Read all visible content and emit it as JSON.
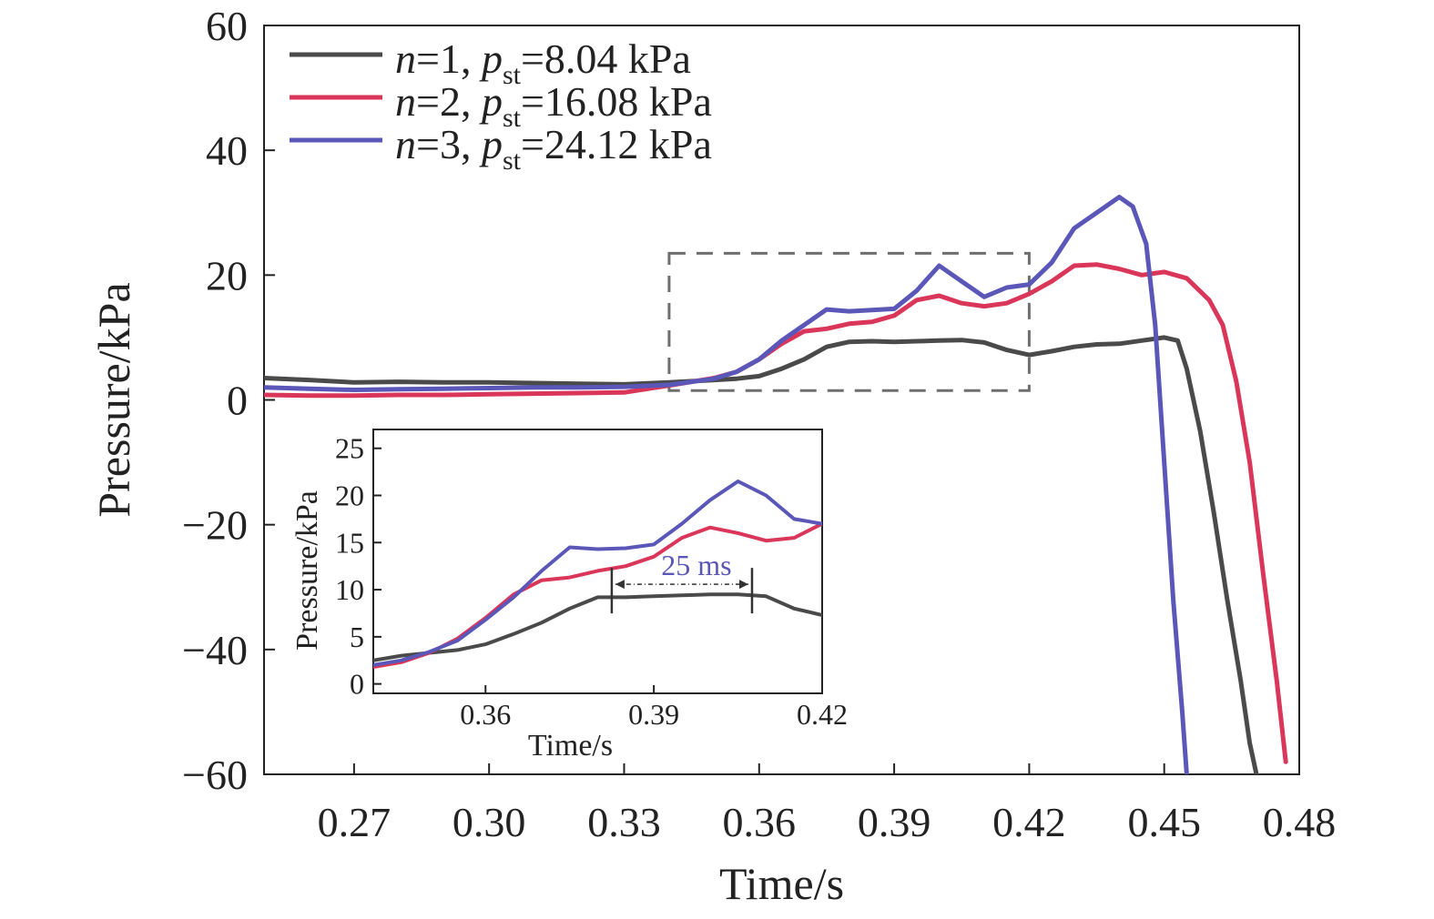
{
  "chart_data": [
    {
      "type": "line",
      "role": "main",
      "xlabel": "Time/s",
      "ylabel": "Pressure/kPa",
      "xlim": [
        0.25,
        0.48
      ],
      "ylim": [
        -60,
        60
      ],
      "xticks": [
        0.27,
        0.3,
        0.33,
        0.36,
        0.39,
        0.42,
        0.45,
        0.48
      ],
      "xtick_labels": [
        "0.27",
        "0.30",
        "0.33",
        "0.36",
        "0.39",
        "0.42",
        "0.45",
        "0.48"
      ],
      "yticks": [
        -60,
        -40,
        -20,
        0,
        20,
        40,
        60
      ],
      "ytick_labels": [
        "−60",
        "−40",
        "−20",
        "0",
        "20",
        "40",
        "60"
      ],
      "legend_position": "top-left",
      "grid": false,
      "series": [
        {
          "label": {
            "n": "n",
            "n_val": "=1, ",
            "p": "p",
            "sub": "st",
            "rest": "=8.04 kPa"
          },
          "color": "#4a4a4a",
          "x": [
            0.25,
            0.26,
            0.27,
            0.28,
            0.29,
            0.3,
            0.31,
            0.32,
            0.33,
            0.34,
            0.35,
            0.355,
            0.36,
            0.365,
            0.37,
            0.375,
            0.38,
            0.385,
            0.39,
            0.395,
            0.4,
            0.405,
            0.41,
            0.415,
            0.42,
            0.425,
            0.43,
            0.435,
            0.44,
            0.445,
            0.45,
            0.453,
            0.455,
            0.458,
            0.461,
            0.464,
            0.467,
            0.469,
            0.4705
          ],
          "y": [
            3.5,
            3.2,
            2.8,
            2.9,
            2.8,
            2.8,
            2.7,
            2.6,
            2.5,
            2.8,
            3.2,
            3.4,
            3.8,
            5.0,
            6.5,
            8.5,
            9.3,
            9.4,
            9.3,
            9.4,
            9.5,
            9.6,
            9.2,
            8.0,
            7.2,
            7.8,
            8.5,
            8.9,
            9.0,
            9.5,
            10.0,
            9.5,
            5.0,
            -5.0,
            -18.0,
            -32.0,
            -45.0,
            -55.0,
            -60.0
          ]
        },
        {
          "label": {
            "n": "n",
            "n_val": "=2, ",
            "p": "p",
            "sub": "st",
            "rest": "=16.08 kPa"
          },
          "color": "#d9365a",
          "x": [
            0.25,
            0.26,
            0.27,
            0.28,
            0.29,
            0.3,
            0.31,
            0.32,
            0.33,
            0.34,
            0.35,
            0.355,
            0.36,
            0.365,
            0.37,
            0.375,
            0.38,
            0.385,
            0.39,
            0.395,
            0.4,
            0.405,
            0.41,
            0.415,
            0.42,
            0.425,
            0.43,
            0.435,
            0.44,
            0.445,
            0.45,
            0.455,
            0.46,
            0.463,
            0.466,
            0.469,
            0.472,
            0.475,
            0.477
          ],
          "y": [
            0.8,
            0.7,
            0.7,
            0.8,
            0.8,
            0.9,
            1.0,
            1.1,
            1.2,
            2.3,
            3.5,
            4.5,
            6.5,
            9.0,
            11.0,
            11.4,
            12.2,
            12.5,
            13.5,
            16.0,
            16.7,
            15.5,
            15.0,
            15.5,
            17.0,
            19.0,
            21.5,
            21.7,
            21.0,
            20.0,
            20.5,
            19.5,
            16.0,
            12.0,
            3.0,
            -10.0,
            -28.0,
            -45.0,
            -58.0
          ]
        },
        {
          "label": {
            "n": "n",
            "n_val": "=3, ",
            "p": "p",
            "sub": "st",
            "rest": "=24.12 kPa"
          },
          "color": "#5b57b8",
          "x": [
            0.25,
            0.26,
            0.27,
            0.28,
            0.29,
            0.3,
            0.31,
            0.32,
            0.33,
            0.34,
            0.35,
            0.355,
            0.36,
            0.365,
            0.37,
            0.375,
            0.38,
            0.385,
            0.39,
            0.395,
            0.4,
            0.405,
            0.41,
            0.415,
            0.42,
            0.425,
            0.43,
            0.435,
            0.44,
            0.443,
            0.446,
            0.448,
            0.45,
            0.452,
            0.454,
            0.455
          ],
          "y": [
            2.0,
            1.8,
            1.6,
            1.7,
            1.8,
            1.9,
            2.0,
            2.0,
            2.1,
            2.4,
            3.4,
            4.5,
            6.5,
            9.5,
            12.0,
            14.5,
            14.2,
            14.4,
            14.6,
            17.5,
            21.5,
            19.0,
            16.5,
            18.0,
            18.5,
            22.0,
            27.5,
            30.0,
            32.5,
            31.0,
            25.0,
            12.0,
            -10.0,
            -32.0,
            -50.0,
            -60.0
          ]
        }
      ],
      "zoom_box": {
        "x": [
          0.34,
          0.42
        ],
        "y": [
          1.5,
          23.5
        ],
        "color": "#6e6e6e"
      }
    },
    {
      "type": "line",
      "role": "inset",
      "xlabel": "Time/s",
      "ylabel": "Pressure/kPa",
      "xlim": [
        0.34,
        0.42
      ],
      "ylim": [
        -1,
        27
      ],
      "xticks": [
        0.36,
        0.39,
        0.42
      ],
      "xtick_labels": [
        "0.36",
        "0.39",
        "0.42"
      ],
      "yticks": [
        0,
        5,
        10,
        15,
        20,
        25
      ],
      "ytick_labels": [
        "0",
        "5",
        "10",
        "15",
        "20",
        "25"
      ],
      "series": [
        {
          "color": "#4a4a4a",
          "x": [
            0.34,
            0.345,
            0.35,
            0.355,
            0.36,
            0.365,
            0.37,
            0.375,
            0.38,
            0.385,
            0.39,
            0.395,
            0.4,
            0.405,
            0.41,
            0.415,
            0.42
          ],
          "y": [
            2.5,
            3.0,
            3.3,
            3.6,
            4.2,
            5.3,
            6.5,
            8.0,
            9.2,
            9.2,
            9.3,
            9.4,
            9.5,
            9.5,
            9.3,
            8.0,
            7.3
          ]
        },
        {
          "color": "#d9365a",
          "x": [
            0.34,
            0.345,
            0.35,
            0.355,
            0.36,
            0.365,
            0.37,
            0.375,
            0.38,
            0.385,
            0.39,
            0.395,
            0.4,
            0.405,
            0.41,
            0.415,
            0.42
          ],
          "y": [
            1.8,
            2.3,
            3.3,
            4.8,
            7.0,
            9.5,
            11.0,
            11.3,
            12.0,
            12.5,
            13.5,
            15.5,
            16.6,
            16.0,
            15.2,
            15.5,
            17.0
          ]
        },
        {
          "color": "#5b57b8",
          "x": [
            0.34,
            0.345,
            0.35,
            0.355,
            0.36,
            0.365,
            0.37,
            0.375,
            0.38,
            0.385,
            0.39,
            0.395,
            0.4,
            0.405,
            0.41,
            0.415,
            0.42
          ],
          "y": [
            2.0,
            2.5,
            3.4,
            4.6,
            6.8,
            9.2,
            12.0,
            14.5,
            14.3,
            14.4,
            14.8,
            17.0,
            19.5,
            21.5,
            20.0,
            17.5,
            17.0
          ]
        }
      ],
      "annotation": {
        "text": "25 ms",
        "x_start": 0.3825,
        "x_end": 0.4075,
        "y": 9.8,
        "text_color": "#5b57b8"
      }
    }
  ]
}
